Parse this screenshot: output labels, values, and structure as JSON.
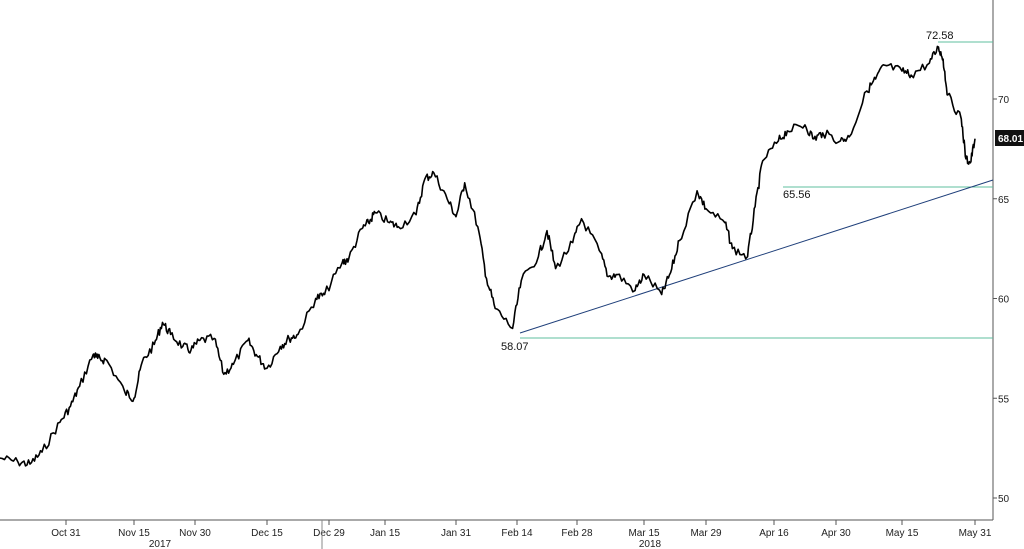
{
  "chart_data": {
    "type": "line",
    "title": "",
    "xlabel": "",
    "ylabel": "",
    "ylim": [
      48,
      75
    ],
    "y_ticks": [
      "50",
      "55",
      "60",
      "65",
      "70"
    ],
    "x_ticks": [
      "Oct 31",
      "Nov 15",
      "Nov 30",
      "Dec 15",
      "Dec 29",
      "Jan 15",
      "Jan 31",
      "Feb 14",
      "Feb 28",
      "Mar 15",
      "Mar 29",
      "Apr 16",
      "Apr 30",
      "May 15",
      "May 31"
    ],
    "years": [
      "2017",
      "2018"
    ],
    "grid": false,
    "series": [
      {
        "color": "#000000",
        "x": [
          "2017-10-20",
          "2017-10-23",
          "2017-10-25",
          "2017-10-27",
          "2017-10-30",
          "2017-11-01",
          "2017-11-03",
          "2017-11-06",
          "2017-11-07",
          "2017-11-09",
          "2017-11-13",
          "2017-11-15",
          "2017-11-17",
          "2017-11-20",
          "2017-11-22",
          "2017-11-24",
          "2017-11-27",
          "2017-11-29",
          "2017-12-01",
          "2017-12-04",
          "2017-12-06",
          "2017-12-08",
          "2017-12-11",
          "2017-12-13",
          "2017-12-15",
          "2017-12-18",
          "2017-12-20",
          "2017-12-22",
          "2017-12-26",
          "2017-12-28",
          "2018-01-02",
          "2018-01-04",
          "2018-01-08",
          "2018-01-10",
          "2018-01-12",
          "2018-01-16",
          "2018-01-18",
          "2018-01-22",
          "2018-01-24",
          "2018-01-26",
          "2018-01-29",
          "2018-01-31",
          "2018-02-02",
          "2018-02-05",
          "2018-02-07",
          "2018-02-09",
          "2018-02-13",
          "2018-02-15",
          "2018-02-19",
          "2018-02-21",
          "2018-02-23",
          "2018-02-27",
          "2018-03-01",
          "2018-03-05",
          "2018-03-07",
          "2018-03-09",
          "2018-03-13",
          "2018-03-15",
          "2018-03-19",
          "2018-03-21",
          "2018-03-23",
          "2018-03-27",
          "2018-03-29",
          "2018-04-03",
          "2018-04-05",
          "2018-04-09",
          "2018-04-11",
          "2018-04-13",
          "2018-04-17",
          "2018-04-19",
          "2018-04-23",
          "2018-04-25",
          "2018-04-27",
          "2018-05-01",
          "2018-05-03",
          "2018-05-07",
          "2018-05-09",
          "2018-05-11",
          "2018-05-15",
          "2018-05-17",
          "2018-05-21",
          "2018-05-23",
          "2018-05-24",
          "2018-05-25",
          "2018-05-28",
          "2018-05-29",
          "2018-05-30",
          "2018-05-31"
        ],
        "values": [
          52.0,
          51.8,
          51.7,
          52.3,
          53.8,
          54.6,
          55.6,
          57.2,
          57.0,
          56.9,
          55.3,
          55.0,
          56.8,
          57.7,
          58.8,
          58.2,
          57.6,
          57.4,
          57.9,
          58.0,
          56.2,
          56.7,
          57.9,
          57.1,
          56.5,
          57.6,
          58.0,
          58.2,
          60.0,
          60.2,
          61.8,
          62.0,
          63.5,
          63.8,
          64.3,
          63.8,
          63.6,
          64.2,
          66.0,
          66.3,
          65.0,
          64.1,
          65.8,
          63.6,
          61.0,
          59.5,
          58.5,
          60.9,
          62.1,
          63.4,
          61.5,
          62.8,
          64.0,
          62.4,
          61.1,
          61.2,
          60.4,
          61.2,
          60.2,
          61.3,
          62.9,
          65.4,
          64.5,
          63.8,
          62.5,
          62.1,
          64.6,
          66.9,
          67.9,
          68.4,
          68.7,
          68.0,
          68.3,
          67.9,
          68.1,
          70.4,
          71.0,
          71.7,
          71.4,
          71.2,
          71.8,
          72.6,
          72.0,
          70.2,
          69.0,
          67.0,
          66.8,
          68.01
        ]
      }
    ],
    "annotations": {
      "high_label": "72.58",
      "low_label": "58.07",
      "support_label": "65.56",
      "last_value": "68.01"
    },
    "colors": {
      "trend": "#1f3f7a",
      "level": "#5fbf9f",
      "price": "#000000"
    }
  }
}
